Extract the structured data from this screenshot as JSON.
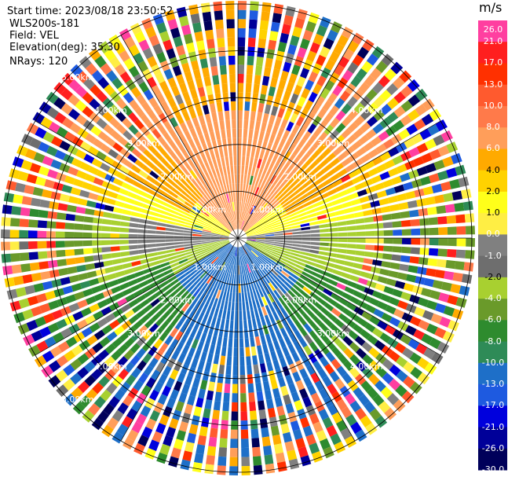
{
  "info": {
    "start_time": "Start time: 2023/08/18 23:50:52",
    "site": "WLS200s-181",
    "field": "Field: VEL",
    "elevation": "Elevation(deg): 35.30",
    "nrays": "NRays: 120"
  },
  "chart_data": {
    "type": "ppi-heatmap",
    "field": "VEL",
    "nrays": 120,
    "range_km_max": 5.0,
    "range_ring_labels": [
      "1.00km",
      "2.00km",
      "3.00km",
      "4.00km",
      "5.00km"
    ],
    "colorbar": {
      "unit": "m/s",
      "ticks": [
        "26.0",
        "21.0",
        "17.0",
        "13.0",
        "10.0",
        "8.0",
        "6.0",
        "4.0",
        "2.0",
        "1.0",
        "0.0",
        "-1.0",
        "-2.0",
        "-4.0",
        "-6.0",
        "-8.0",
        "-10.0",
        "-13.0",
        "-17.0",
        "-21.0",
        "-26.0",
        "-30.0"
      ],
      "colors": [
        "#ff3fa0",
        "#ff1f1f",
        "#ff3000",
        "#ff5a2e",
        "#ff7a4a",
        "#ff9e5a",
        "#ffaa00",
        "#ffd200",
        "#ffff1a",
        "#ffee44",
        "#808080",
        "#6e6e6e",
        "#a8d030",
        "#6a9a2a",
        "#2e8b2e",
        "#2e8b57",
        "#1e6fc8",
        "#1e5ae0",
        "#0000dd",
        "#000099",
        "#00005a"
      ]
    }
  }
}
